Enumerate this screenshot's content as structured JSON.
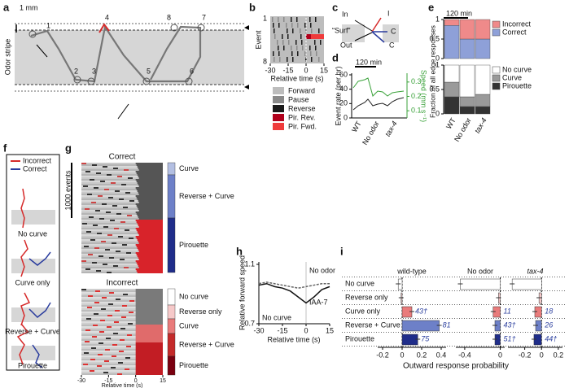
{
  "labels": [
    "a",
    "b",
    "c",
    "d",
    "e",
    "f",
    "g",
    "h",
    "i"
  ],
  "a": {
    "scale": "1 mm",
    "region": "Odor stripe",
    "points": [
      "1",
      "2",
      "3",
      "4",
      "5",
      "6",
      "7",
      "8"
    ]
  },
  "b": {
    "ylabel": "Event",
    "yticks": [
      1,
      8
    ],
    "xlabel": "Relative time (s)",
    "xticks": [
      -30,
      -15,
      0,
      15
    ],
    "legend": [
      {
        "name": "Forward",
        "color": "#bdbdbd"
      },
      {
        "name": "Pause",
        "color": "#8a8a8a"
      },
      {
        "name": "Reverse",
        "color": "#1a1a1a"
      },
      {
        "name": "Pir. Rev.",
        "color": "#b0001b"
      },
      {
        "name": "Pir. Fwd.",
        "color": "#ef3b3b"
      }
    ]
  },
  "c": {
    "texts": [
      "In",
      "I",
      "“Surf”",
      "C",
      "Out",
      "C"
    ]
  },
  "d": {
    "scalebar": "120 min",
    "ylabel": "Event rate (per hr)",
    "yticks": [
      0,
      20,
      40,
      60
    ],
    "y2label": "Speed (mm s⁻¹)",
    "y2ticks": [
      0.1,
      0.2,
      0.3
    ],
    "categories": [
      "WT",
      "No odor",
      "tax-4"
    ]
  },
  "e": {
    "scalebar": "120 min",
    "ylabel": "Fraction of all edge responses",
    "yticks": [
      0,
      0.5,
      1
    ],
    "categories": [
      "WT",
      "No odor",
      "tax-4"
    ],
    "top": [
      {
        "name": "Incorrect",
        "color": "#ef8a8a",
        "values": [
          0.15,
          0.5,
          0.5
        ]
      },
      {
        "name": "Correct",
        "color": "#8ea0d8",
        "values": [
          0.85,
          0.5,
          0.5
        ]
      }
    ],
    "bottom": [
      {
        "name": "No curve",
        "color": "#ffffff",
        "values": [
          0.35,
          0.65,
          0.6
        ]
      },
      {
        "name": "Curve",
        "color": "#9a9a9a",
        "values": [
          0.3,
          0.2,
          0.25
        ]
      },
      {
        "name": "Pirouette",
        "color": "#333333",
        "values": [
          0.35,
          0.15,
          0.15
        ]
      }
    ]
  },
  "f": {
    "legend": [
      {
        "name": "Incorrect",
        "color": "#d62a2a"
      },
      {
        "name": "Correct",
        "color": "#2a3c9e"
      }
    ],
    "rows": [
      "No curve",
      "Curve only",
      "Reverse + Curve",
      "Pirouette"
    ]
  },
  "g": {
    "top_title": "Correct",
    "scale": "1000 events",
    "top_groups": [
      "Curve",
      "Reverse + Curve",
      "Pirouette"
    ],
    "bottom_title": "Incorrect",
    "bottom_groups": [
      "No curve",
      "Reverse only",
      "Curve",
      "Reverse + Curve",
      "Pirouette"
    ],
    "xticks": [
      -30,
      -15,
      0,
      15
    ],
    "xlabel": "Relative time (s)"
  },
  "h": {
    "ylabel": "Relative forward speed",
    "yticks": [
      0.7,
      1.1
    ],
    "ylim": [
      0.7,
      1.1
    ],
    "xlim": [
      -30,
      15
    ],
    "xticks": [
      -30,
      -15,
      0,
      15
    ],
    "xlabel": "Relative time (s)",
    "note": "No curve",
    "x": [
      -30,
      -25,
      -20,
      -15,
      -10,
      -5,
      0,
      5,
      10,
      15
    ],
    "series": [
      {
        "name": "No odor",
        "color": "#666666",
        "values": [
          0.97,
          0.98,
          0.97,
          0.96,
          0.95,
          0.94,
          0.95,
          0.96,
          0.97,
          0.97
        ]
      },
      {
        "name": "IAA-7",
        "color": "#111111",
        "values": [
          0.96,
          0.97,
          0.95,
          0.94,
          0.92,
          0.88,
          0.84,
          0.88,
          0.93,
          0.95
        ]
      }
    ]
  },
  "i": {
    "xlabel": "Outward response probability",
    "rows": [
      "No curve",
      "Reverse only",
      "Curve only",
      "Reverse + Curve",
      "Pirouette"
    ],
    "row_colors": [
      "#ffffff",
      "#f6c9c9",
      "#e97b7b",
      "#6d80c8",
      "#1f2d8a"
    ],
    "columns": [
      {
        "name": "wild-type",
        "xlim": [
          -0.25,
          0.45
        ],
        "xticks": [
          -0.2,
          0,
          0.2,
          0.4
        ],
        "values": [
          -0.04,
          -0.01,
          0.1,
          0.38,
          0.16
        ],
        "n_labels": [
          null,
          null,
          "43†",
          "81",
          "75"
        ]
      },
      {
        "name": "No odor",
        "xlim": [
          -0.5,
          0.05
        ],
        "xticks": [
          -0.4,
          0
        ],
        "values": [
          -0.45,
          -0.02,
          -0.08,
          -0.06,
          -0.06
        ],
        "n_labels": [
          null,
          null,
          "11",
          "43†",
          "51†"
        ]
      },
      {
        "name": "tax-4",
        "xlim": [
          -0.4,
          0.25
        ],
        "xticks": [
          -0.2,
          0,
          0.2
        ],
        "values": [
          -0.35,
          -0.03,
          -0.08,
          -0.07,
          -0.09
        ],
        "n_labels": [
          null,
          null,
          "18",
          "26",
          "44†"
        ]
      }
    ]
  }
}
